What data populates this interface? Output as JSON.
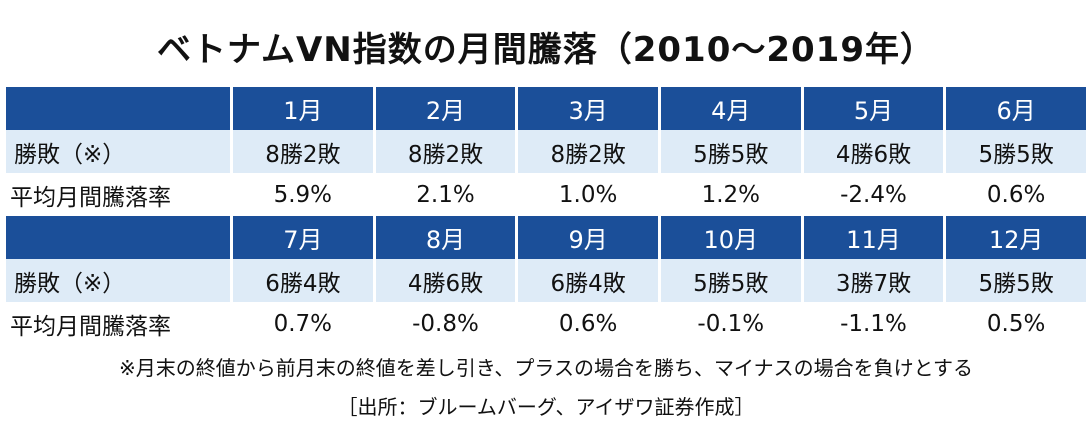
{
  "title": "ベトナムVN指数の月間騰落（2010～2019年）",
  "row_labels": {
    "win_loss": "勝敗（※）",
    "avg_change": "平均月間騰落率"
  },
  "colors": {
    "header_bg": "#1b4f99",
    "header_text": "#ffffff",
    "light_row_bg": "#deebf7",
    "text": "#111111"
  },
  "block1": {
    "months": [
      "1月",
      "2月",
      "3月",
      "4月",
      "5月",
      "6月"
    ],
    "win_loss": [
      "8勝2敗",
      "8勝2敗",
      "8勝2敗",
      "5勝5敗",
      "4勝6敗",
      "5勝5敗"
    ],
    "avg_change": [
      "5.9%",
      "2.1%",
      "1.0%",
      "1.2%",
      "-2.4%",
      "0.6%"
    ]
  },
  "block2": {
    "months": [
      "7月",
      "8月",
      "9月",
      "10月",
      "11月",
      "12月"
    ],
    "win_loss": [
      "6勝4敗",
      "4勝6敗",
      "6勝4敗",
      "5勝5敗",
      "3勝7敗",
      "5勝5敗"
    ],
    "avg_change": [
      "0.7%",
      "-0.8%",
      "0.6%",
      "-0.1%",
      "-1.1%",
      "0.5%"
    ]
  },
  "note": "※月末の終値から前月末の終値を差し引き、プラスの場合を勝ち、マイナスの場合を負けとする",
  "source": "［出所：ブルームバーグ、アイザワ証券作成］"
}
